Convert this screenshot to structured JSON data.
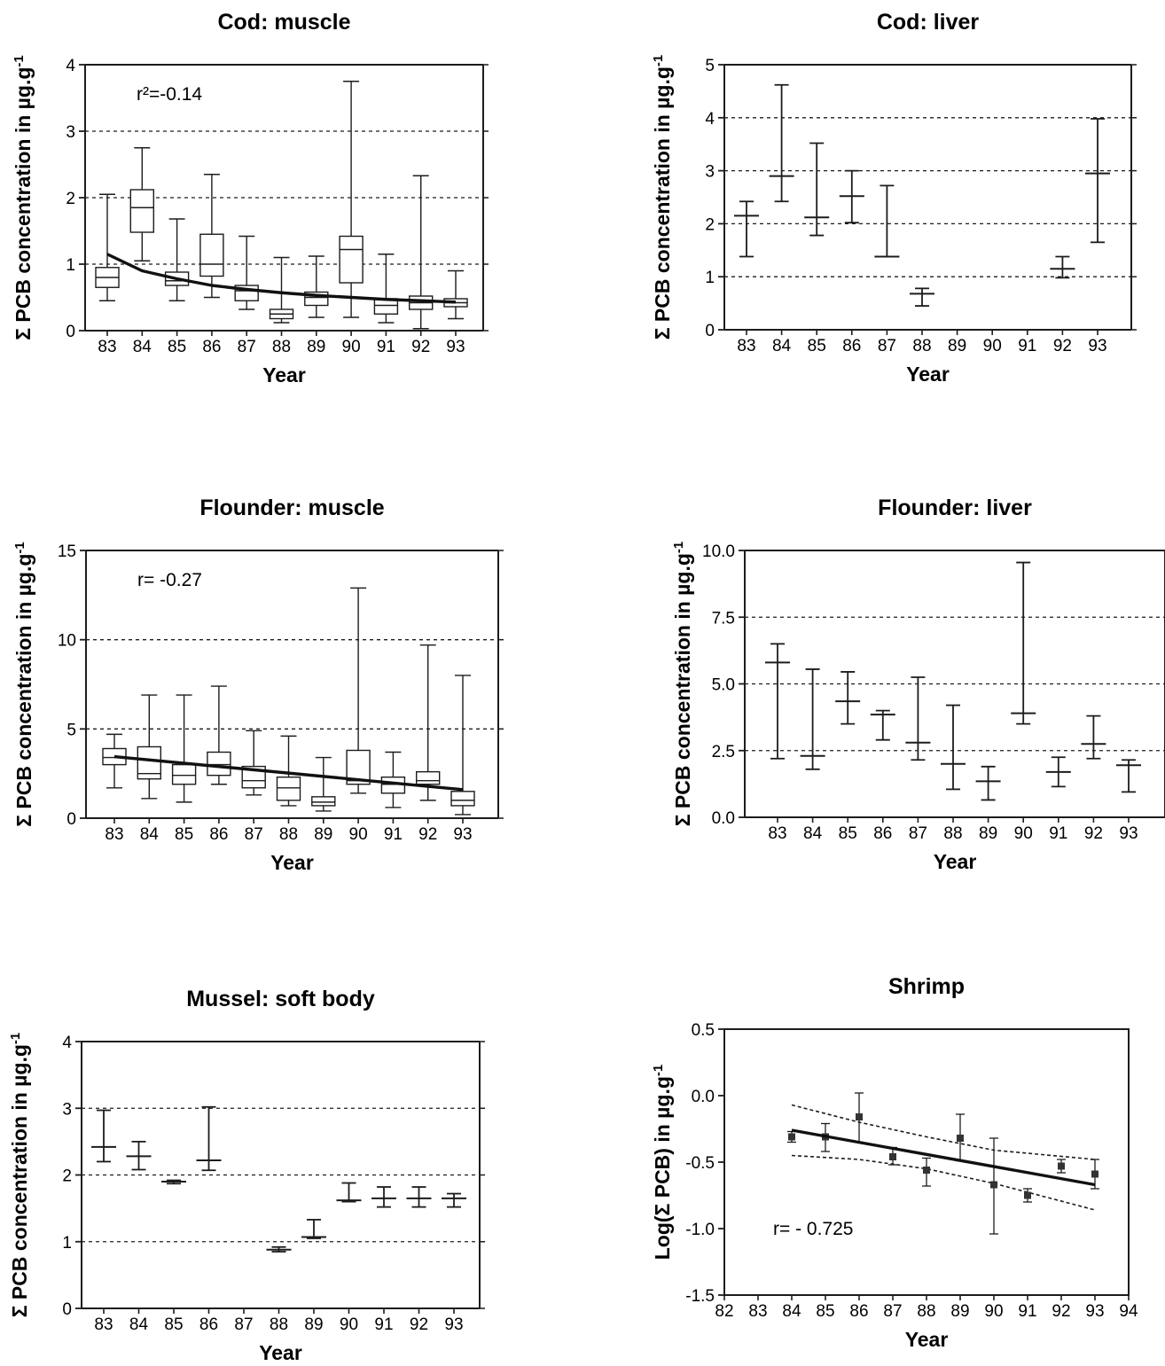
{
  "chart_data": [
    {
      "id": "cod_muscle",
      "type": "box",
      "title": "Cod: muscle",
      "xlabel": "Year",
      "ylabel": "Σ PCB concentration in µg.g",
      "ylabel_sup": "-1",
      "categories": [
        "83",
        "84",
        "85",
        "86",
        "87",
        "88",
        "89",
        "90",
        "91",
        "92",
        "93"
      ],
      "ylim": [
        0,
        4
      ],
      "yticks": [
        "0",
        "1",
        "2",
        "3",
        "4"
      ],
      "gridlines": [
        1,
        2,
        3
      ],
      "annotation": "r²=-0.14",
      "boxes": [
        {
          "min": 0.45,
          "q1": 0.65,
          "median": 0.8,
          "q3": 0.95,
          "max": 2.05
        },
        {
          "min": 1.05,
          "q1": 1.48,
          "median": 1.85,
          "q3": 2.12,
          "max": 2.75
        },
        {
          "min": 0.45,
          "q1": 0.68,
          "median": 0.75,
          "q3": 0.88,
          "max": 1.68
        },
        {
          "min": 0.5,
          "q1": 0.82,
          "median": 1.0,
          "q3": 1.45,
          "max": 2.35
        },
        {
          "min": 0.32,
          "q1": 0.45,
          "median": 0.6,
          "q3": 0.68,
          "max": 1.42
        },
        {
          "min": 0.12,
          "q1": 0.18,
          "median": 0.25,
          "q3": 0.32,
          "max": 1.1
        },
        {
          "min": 0.2,
          "q1": 0.38,
          "median": 0.5,
          "q3": 0.58,
          "max": 1.12
        },
        {
          "min": 0.2,
          "q1": 0.72,
          "median": 1.22,
          "q3": 1.42,
          "max": 3.75
        },
        {
          "min": 0.12,
          "q1": 0.25,
          "median": 0.38,
          "q3": 0.48,
          "max": 1.15
        },
        {
          "min": 0.03,
          "q1": 0.32,
          "median": 0.42,
          "q3": 0.52,
          "max": 2.33
        },
        {
          "min": 0.18,
          "q1": 0.36,
          "median": 0.42,
          "q3": 0.48,
          "max": 0.9
        }
      ],
      "fit": [
        [
          83,
          1.15
        ],
        [
          84,
          0.9
        ],
        [
          85,
          0.78
        ],
        [
          86,
          0.68
        ],
        [
          87,
          0.62
        ],
        [
          88,
          0.57
        ],
        [
          89,
          0.53
        ],
        [
          90,
          0.5
        ],
        [
          91,
          0.47
        ],
        [
          92,
          0.45
        ],
        [
          93,
          0.43
        ]
      ]
    },
    {
      "id": "cod_liver",
      "type": "errorbar",
      "title": "Cod: liver",
      "xlabel": "Year",
      "ylabel": "Σ PCB concentration in µg.g",
      "ylabel_sup": "-1",
      "categories": [
        "83",
        "84",
        "85",
        "86",
        "87",
        "88",
        "89",
        "90",
        "91",
        "92",
        "93"
      ],
      "ylim": [
        0,
        5
      ],
      "yticks": [
        "0",
        "1",
        "2",
        "3",
        "4",
        "5"
      ],
      "gridlines": [
        1,
        2,
        3,
        4
      ],
      "points": [
        {
          "x": "83",
          "mean": 2.15,
          "low": 1.38,
          "high": 2.42
        },
        {
          "x": "84",
          "mean": 2.9,
          "low": 2.42,
          "high": 4.62
        },
        {
          "x": "85",
          "mean": 2.12,
          "low": 1.78,
          "high": 3.52
        },
        {
          "x": "86",
          "mean": 2.52,
          "low": 2.02,
          "high": 3.0
        },
        {
          "x": "87",
          "mean": 1.38,
          "low": 1.38,
          "high": 2.72
        },
        {
          "x": "88",
          "mean": 0.68,
          "low": 0.45,
          "high": 0.78
        },
        {
          "x": "92",
          "mean": 1.15,
          "low": 0.98,
          "high": 1.38
        },
        {
          "x": "93",
          "mean": 2.95,
          "low": 1.65,
          "high": 3.98
        }
      ]
    },
    {
      "id": "flounder_muscle",
      "type": "box",
      "title": "Flounder: muscle",
      "xlabel": "Year",
      "ylabel": "Σ PCB concentration in µg.g",
      "ylabel_sup": "-1",
      "categories": [
        "83",
        "84",
        "85",
        "86",
        "87",
        "88",
        "89",
        "90",
        "91",
        "92",
        "93"
      ],
      "ylim": [
        0,
        15
      ],
      "yticks": [
        "0",
        "5",
        "10",
        "15"
      ],
      "gridlines": [
        5,
        10
      ],
      "annotation": "r= -0.27",
      "boxes": [
        {
          "min": 1.7,
          "q1": 3.0,
          "median": 3.4,
          "q3": 3.9,
          "max": 4.7
        },
        {
          "min": 1.1,
          "q1": 2.2,
          "median": 2.5,
          "q3": 4.0,
          "max": 6.9
        },
        {
          "min": 0.9,
          "q1": 1.9,
          "median": 2.4,
          "q3": 3.0,
          "max": 6.9
        },
        {
          "min": 1.9,
          "q1": 2.4,
          "median": 3.0,
          "q3": 3.7,
          "max": 7.4
        },
        {
          "min": 1.3,
          "q1": 1.7,
          "median": 2.1,
          "q3": 2.9,
          "max": 4.9
        },
        {
          "min": 0.7,
          "q1": 1.0,
          "median": 1.7,
          "q3": 2.3,
          "max": 4.6
        },
        {
          "min": 0.4,
          "q1": 0.7,
          "median": 0.9,
          "q3": 1.2,
          "max": 3.4
        },
        {
          "min": 1.4,
          "q1": 1.9,
          "median": 2.1,
          "q3": 3.8,
          "max": 12.9
        },
        {
          "min": 0.6,
          "q1": 1.4,
          "median": 1.9,
          "q3": 2.3,
          "max": 3.7
        },
        {
          "min": 1.0,
          "q1": 1.9,
          "median": 2.1,
          "q3": 2.6,
          "max": 9.7
        },
        {
          "min": 0.2,
          "q1": 0.7,
          "median": 1.0,
          "q3": 1.5,
          "max": 8.0
        }
      ],
      "fit": [
        [
          83,
          3.45
        ],
        [
          93,
          1.6
        ]
      ]
    },
    {
      "id": "flounder_liver",
      "type": "errorbar",
      "title": "Flounder: liver",
      "xlabel": "Year",
      "ylabel": "Σ PCB concentration in µg.g",
      "ylabel_sup": "-1",
      "categories": [
        "83",
        "84",
        "85",
        "86",
        "87",
        "88",
        "89",
        "90",
        "91",
        "92",
        "93"
      ],
      "ylim": [
        0,
        10
      ],
      "yticks": [
        "0.0",
        "2.5",
        "5.0",
        "7.5",
        "10.0"
      ],
      "gridlines": [
        2.5,
        5.0,
        7.5
      ],
      "points": [
        {
          "x": "83",
          "mean": 5.8,
          "low": 2.2,
          "high": 6.5
        },
        {
          "x": "84",
          "mean": 2.3,
          "low": 1.8,
          "high": 5.55
        },
        {
          "x": "85",
          "mean": 4.35,
          "low": 3.5,
          "high": 5.45
        },
        {
          "x": "86",
          "mean": 3.85,
          "low": 2.9,
          "high": 4.0
        },
        {
          "x": "87",
          "mean": 2.8,
          "low": 2.15,
          "high": 5.25
        },
        {
          "x": "88",
          "mean": 2.0,
          "low": 1.05,
          "high": 4.2
        },
        {
          "x": "89",
          "mean": 1.35,
          "low": 0.65,
          "high": 1.9
        },
        {
          "x": "90",
          "mean": 3.9,
          "low": 3.5,
          "high": 9.55
        },
        {
          "x": "91",
          "mean": 1.7,
          "low": 1.15,
          "high": 2.25
        },
        {
          "x": "92",
          "mean": 2.75,
          "low": 2.2,
          "high": 3.8
        },
        {
          "x": "93",
          "mean": 1.95,
          "low": 0.95,
          "high": 2.15
        }
      ]
    },
    {
      "id": "mussel_soft_body",
      "type": "errorbar",
      "title": "Mussel: soft body",
      "xlabel": "Year",
      "ylabel": "Σ PCB concentration in µg.g",
      "ylabel_sup": "-1",
      "categories": [
        "83",
        "84",
        "85",
        "86",
        "87",
        "88",
        "89",
        "90",
        "91",
        "92",
        "93"
      ],
      "ylim": [
        0,
        4
      ],
      "yticks": [
        "0",
        "1",
        "2",
        "3",
        "4"
      ],
      "gridlines": [
        1,
        2,
        3
      ],
      "points": [
        {
          "x": "83",
          "mean": 2.42,
          "low": 2.2,
          "high": 2.97
        },
        {
          "x": "84",
          "mean": 2.28,
          "low": 2.08,
          "high": 2.5
        },
        {
          "x": "85",
          "mean": 1.9,
          "low": 1.87,
          "high": 1.92
        },
        {
          "x": "86",
          "mean": 2.22,
          "low": 2.07,
          "high": 3.02
        },
        {
          "x": "88",
          "mean": 0.88,
          "low": 0.85,
          "high": 0.92
        },
        {
          "x": "89",
          "mean": 1.07,
          "low": 1.05,
          "high": 1.33
        },
        {
          "x": "90",
          "mean": 1.62,
          "low": 1.6,
          "high": 1.88
        },
        {
          "x": "91",
          "mean": 1.65,
          "low": 1.52,
          "high": 1.82
        },
        {
          "x": "92",
          "mean": 1.65,
          "low": 1.52,
          "high": 1.82
        },
        {
          "x": "93",
          "mean": 1.65,
          "low": 1.52,
          "high": 1.72
        }
      ]
    },
    {
      "id": "shrimp",
      "type": "scatter",
      "title": "Shrimp",
      "xlabel": "Year",
      "ylabel": "Log(Σ PCB) in µg.g",
      "ylabel_sup": "-1",
      "xticks": [
        "82",
        "83",
        "84",
        "85",
        "86",
        "87",
        "88",
        "89",
        "90",
        "91",
        "92",
        "93",
        "94"
      ],
      "xlim": [
        82,
        94
      ],
      "ylim": [
        -1.5,
        0.5
      ],
      "yticks": [
        "-1.5",
        "-1.0",
        "-0.5",
        "0.0",
        "0.5"
      ],
      "annotation": "r= - 0.725",
      "points": [
        {
          "x": 84,
          "y": -0.31,
          "low": -0.35,
          "high": -0.27
        },
        {
          "x": 85,
          "y": -0.31,
          "low": -0.42,
          "high": -0.21
        },
        {
          "x": 86,
          "y": -0.16,
          "low": -0.35,
          "high": 0.02
        },
        {
          "x": 87,
          "y": -0.46,
          "low": -0.52,
          "high": -0.39
        },
        {
          "x": 88,
          "y": -0.56,
          "low": -0.68,
          "high": -0.47
        },
        {
          "x": 89,
          "y": -0.32,
          "low": -0.49,
          "high": -0.14
        },
        {
          "x": 90,
          "y": -0.67,
          "low": -1.04,
          "high": -0.32
        },
        {
          "x": 91,
          "y": -0.75,
          "low": -0.8,
          "high": -0.7
        },
        {
          "x": 92,
          "y": -0.53,
          "low": -0.58,
          "high": -0.48
        },
        {
          "x": 93,
          "y": -0.59,
          "low": -0.7,
          "high": -0.48
        }
      ],
      "fit": [
        [
          84,
          -0.26
        ],
        [
          93,
          -0.67
        ]
      ],
      "ci_upper": [
        [
          84,
          -0.07
        ],
        [
          86,
          -0.2
        ],
        [
          88,
          -0.31
        ],
        [
          90,
          -0.41
        ],
        [
          93,
          -0.48
        ]
      ],
      "ci_lower": [
        [
          84,
          -0.45
        ],
        [
          86,
          -0.48
        ],
        [
          88,
          -0.55
        ],
        [
          90,
          -0.66
        ],
        [
          93,
          -0.86
        ]
      ]
    }
  ]
}
